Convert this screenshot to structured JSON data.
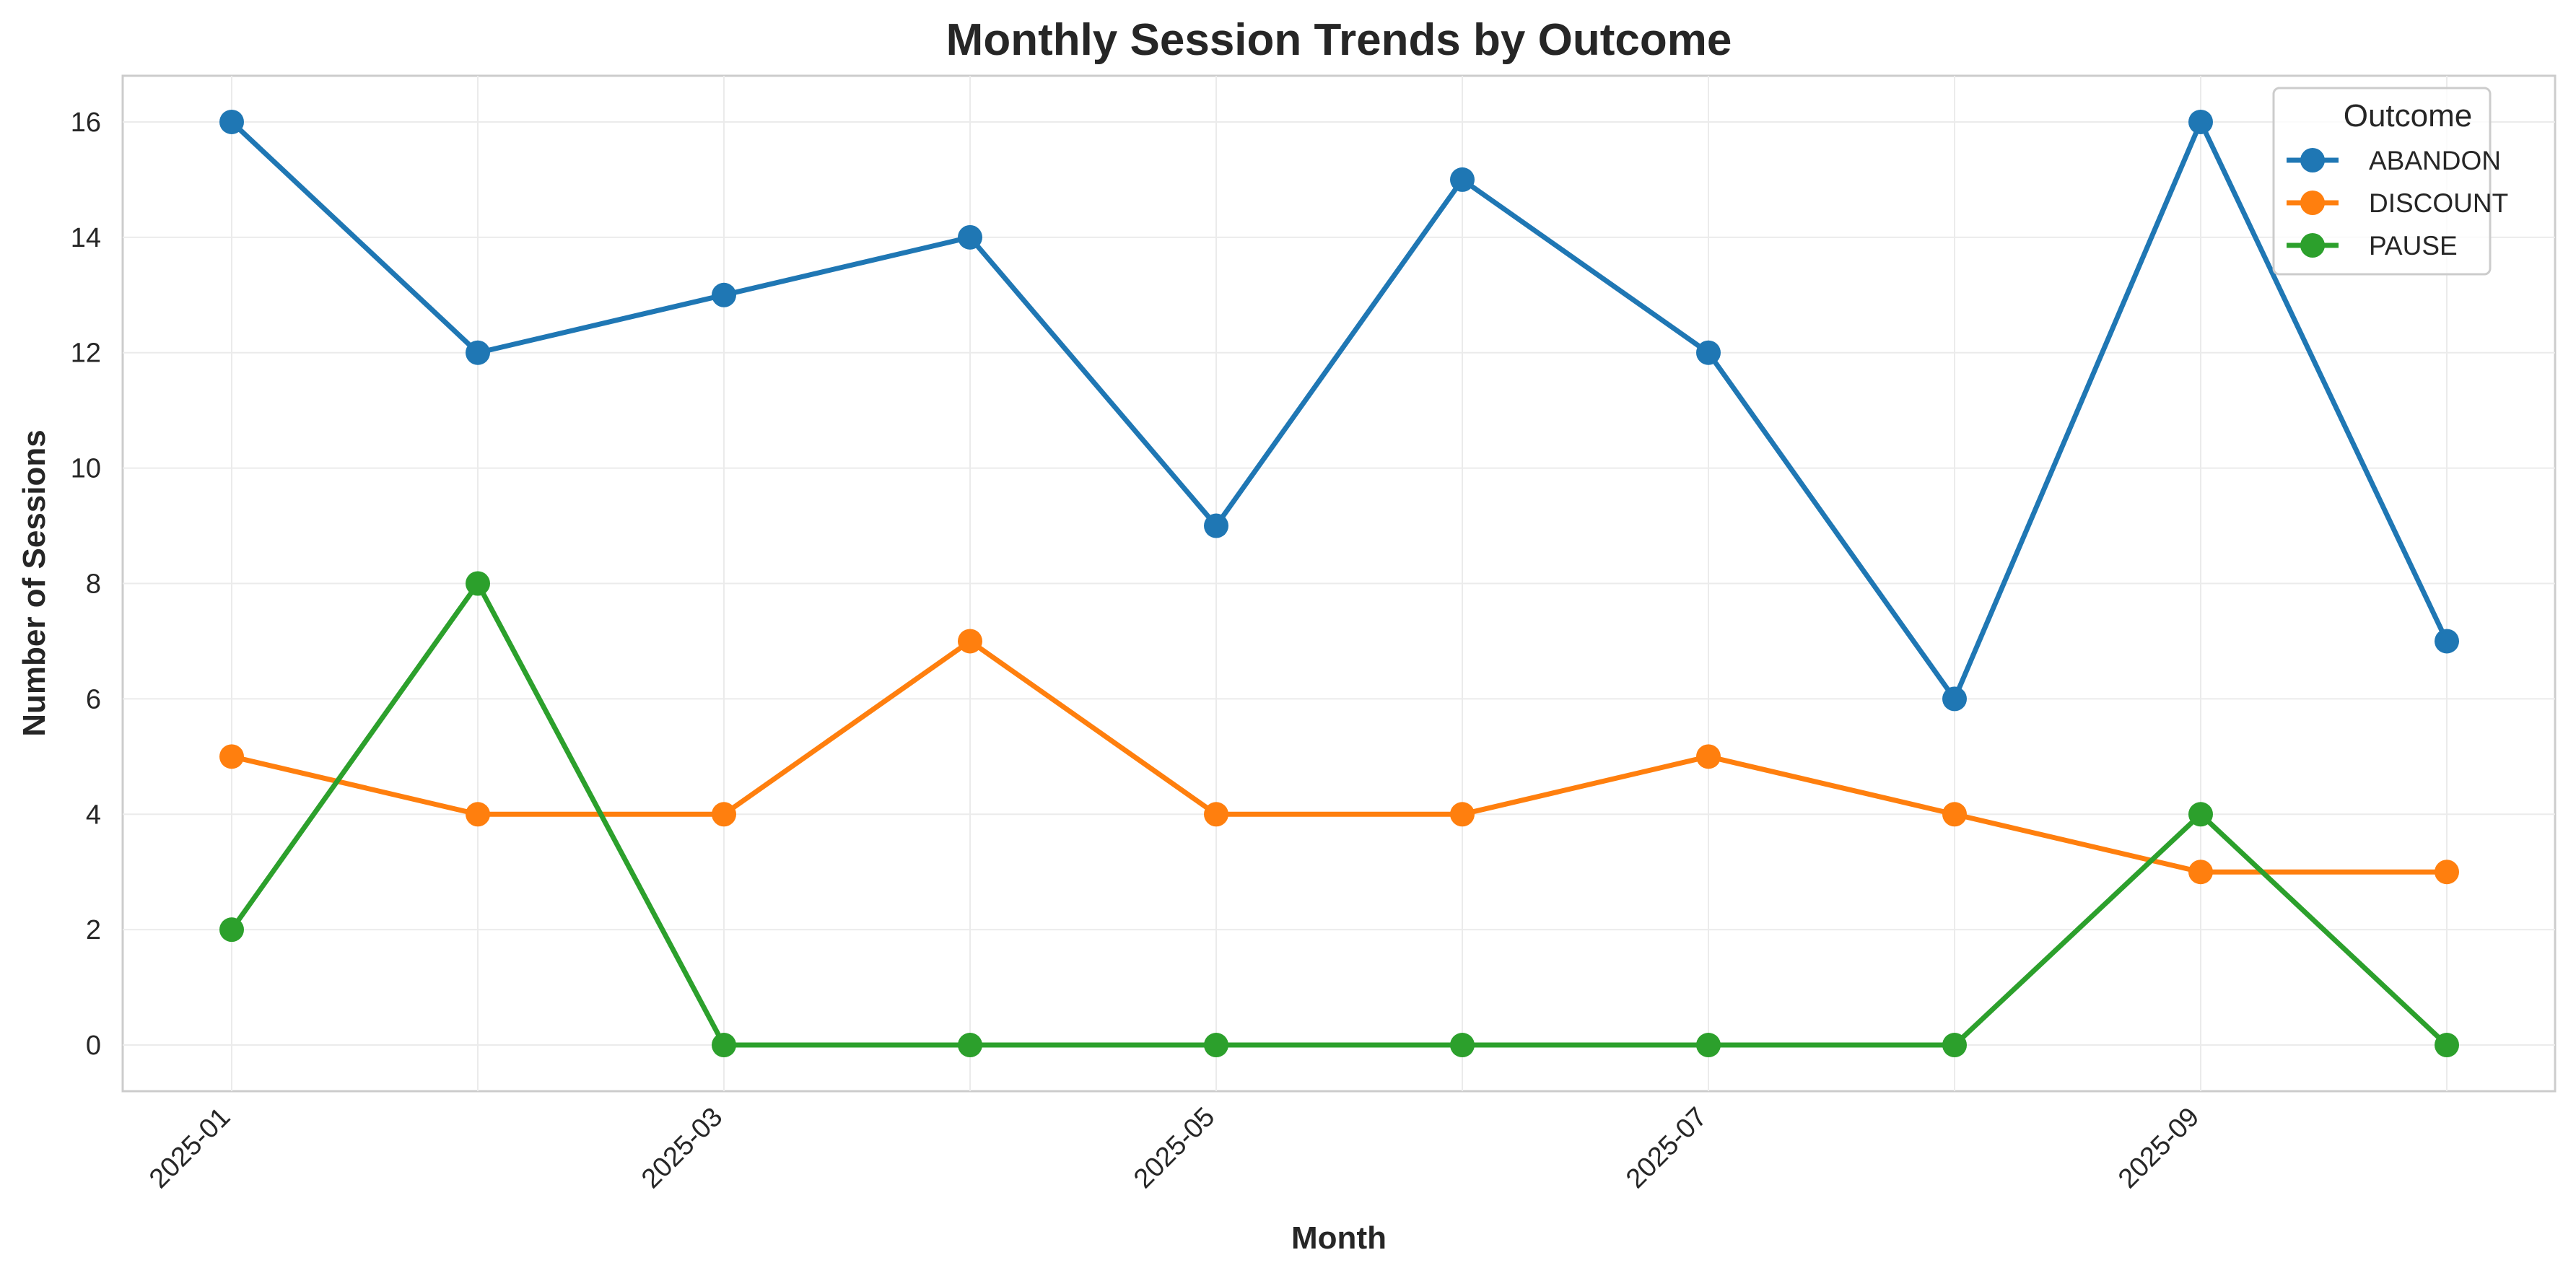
{
  "chart_data": {
    "type": "line",
    "title": "Monthly Session Trends by Outcome",
    "xlabel": "Month",
    "ylabel": "Number of Sessions",
    "x": [
      "2025-01",
      "2025-02",
      "2025-03",
      "2025-04",
      "2025-05",
      "2025-06",
      "2025-07",
      "2025-08",
      "2025-09",
      "2025-10"
    ],
    "x_tick_labels": [
      "2025-01",
      "2025-03",
      "2025-05",
      "2025-07",
      "2025-09"
    ],
    "y_ticks": [
      0,
      2,
      4,
      6,
      8,
      10,
      12,
      14,
      16
    ],
    "ylim": [
      -0.8,
      16.8
    ],
    "grid": true,
    "legend": {
      "title": "Outcome",
      "position": "top-right"
    },
    "series": [
      {
        "name": "ABANDON",
        "color": "#1f77b4",
        "values": [
          16,
          12,
          13,
          14,
          9,
          15,
          12,
          6,
          16,
          7
        ]
      },
      {
        "name": "DISCOUNT",
        "color": "#ff7f0e",
        "values": [
          5,
          4,
          4,
          7,
          4,
          4,
          5,
          4,
          3,
          3
        ]
      },
      {
        "name": "PAUSE",
        "color": "#2ca02c",
        "values": [
          2,
          8,
          0,
          0,
          0,
          0,
          0,
          0,
          4,
          0
        ]
      }
    ]
  }
}
